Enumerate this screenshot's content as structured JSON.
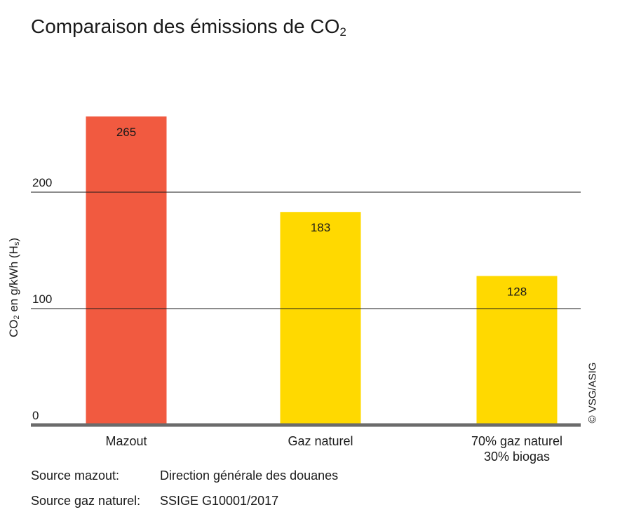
{
  "title": {
    "text": "Comparaison des émissions de CO",
    "subscript": "2"
  },
  "chart_data": {
    "type": "bar",
    "categories": [
      [
        "Mazout"
      ],
      [
        "Gaz naturel"
      ],
      [
        "70% gaz naturel",
        "30% biogas"
      ]
    ],
    "values": [
      265,
      183,
      128
    ],
    "value_labels": [
      "265",
      "183",
      "128"
    ],
    "colors": [
      "#f15a40",
      "#ffd900",
      "#ffd900"
    ],
    "ylim": [
      0,
      300
    ],
    "yticks": [
      0,
      100,
      200
    ],
    "ytick_labels": [
      "0",
      "100",
      "200"
    ],
    "grid": true,
    "ylabel": {
      "prefix": "CO",
      "sub1": "2",
      "middle": " en g/kWh (H",
      "sub2": "s",
      "suffix": ")"
    }
  },
  "copyright": "© VSG/ASIG",
  "sources": [
    {
      "label": "Source mazout:",
      "value": "Direction générale des douanes"
    },
    {
      "label": "Source gaz naturel:",
      "value": "SSIGE G10001/2017"
    }
  ]
}
